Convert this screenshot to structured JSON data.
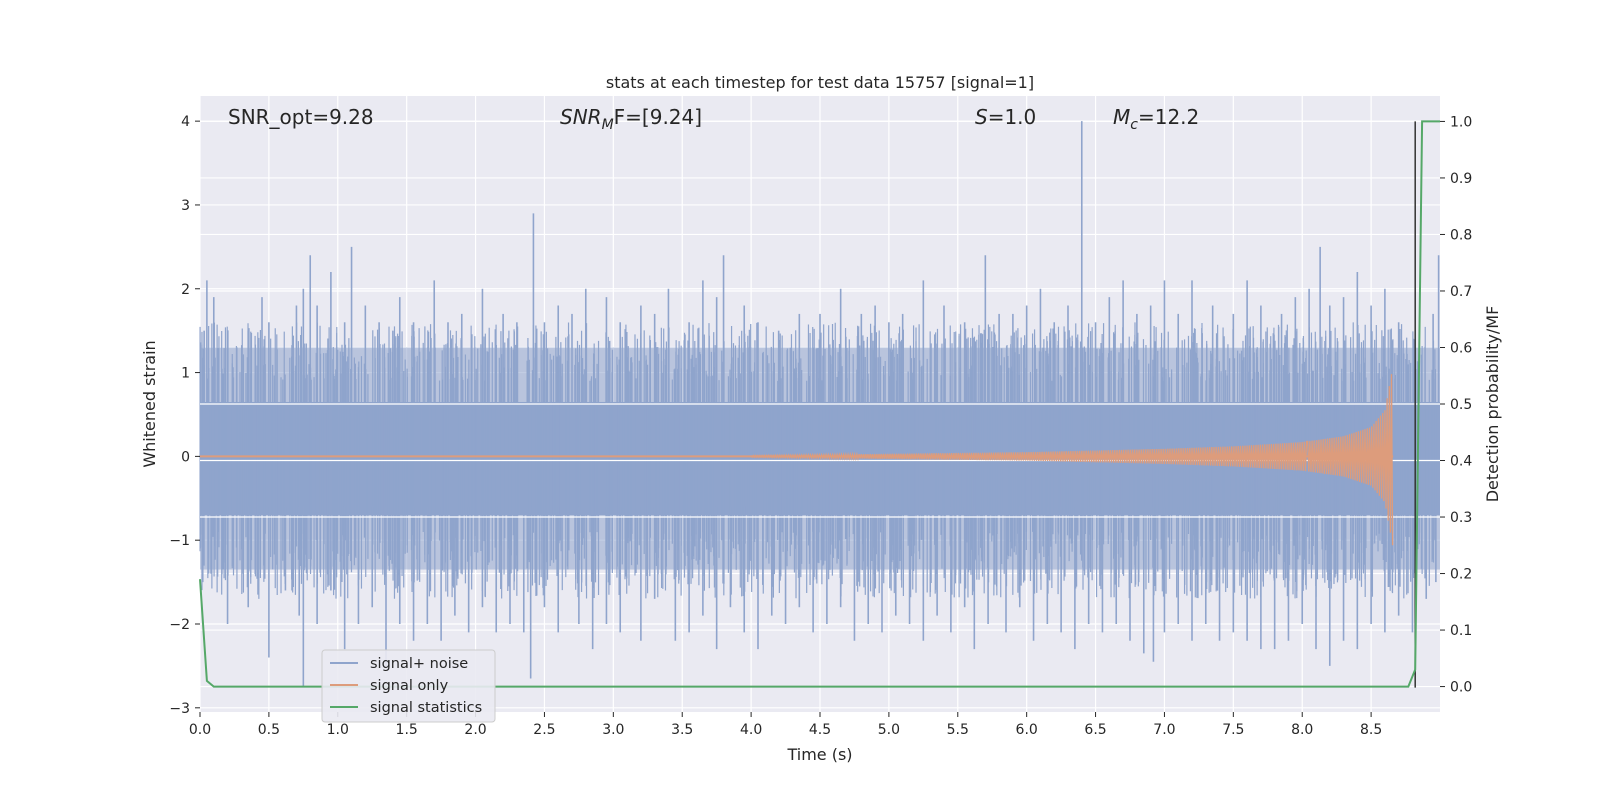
{
  "chart_data": {
    "type": "line",
    "title": "stats at each timestep for test data 15757 [signal=1]",
    "xlabel": "Time (s)",
    "ylabel_left": "Whitened strain",
    "ylabel_right": "Detection probability/MF",
    "xlim": [
      0.0,
      9.0
    ],
    "ylim_left": [
      -3.05,
      4.3
    ],
    "ylim_right": [
      -0.045,
      1.045
    ],
    "x_ticks": [
      "0.0",
      "0.5",
      "1.0",
      "1.5",
      "2.0",
      "2.5",
      "3.0",
      "3.5",
      "4.0",
      "4.5",
      "5.0",
      "5.5",
      "6.0",
      "6.5",
      "7.0",
      "7.5",
      "8.0",
      "8.5"
    ],
    "x_tick_values": [
      0.0,
      0.5,
      1.0,
      1.5,
      2.0,
      2.5,
      3.0,
      3.5,
      4.0,
      4.5,
      5.0,
      5.5,
      6.0,
      6.5,
      7.0,
      7.5,
      8.0,
      8.5
    ],
    "y_left_ticks": [
      "4",
      "3",
      "2",
      "1",
      "0",
      "−1",
      "−2",
      "−3"
    ],
    "y_left_tick_values": [
      4,
      3,
      2,
      1,
      0,
      -1,
      -2,
      -3
    ],
    "y_right_ticks": [
      "1.0",
      "0.9",
      "0.8",
      "0.7",
      "0.6",
      "0.5",
      "0.4",
      "0.3",
      "0.2",
      "0.1",
      "0.0"
    ],
    "y_right_tick_values": [
      1.0,
      0.9,
      0.8,
      0.7,
      0.6,
      0.5,
      0.4,
      0.3,
      0.2,
      0.1,
      0.0
    ],
    "grid": true,
    "legend_position": "lower-left",
    "annotations": {
      "snr_opt": "SNR_opt=9.28",
      "snr_mf_base": "SNR",
      "snr_mf_sub": "M",
      "snr_mf_rest": "F=[9.24]",
      "s_italic": "S",
      "s_value": "=1.0",
      "mc_base": "M",
      "mc_sub": "c",
      "mc_value": "=12.2"
    },
    "series": [
      {
        "name": "signal+ noise",
        "color": "#8fa4cc",
        "axis": "left",
        "band_x": [
          0.0,
          9.0
        ],
        "band_y": [
          -0.7,
          0.65
        ],
        "spikes_up": [
          [
            0.03,
            1.5
          ],
          [
            0.05,
            2.1
          ],
          [
            0.1,
            1.9
          ],
          [
            0.35,
            1.5
          ],
          [
            0.45,
            1.9
          ],
          [
            0.5,
            1.6
          ],
          [
            0.7,
            1.8
          ],
          [
            0.75,
            2.0
          ],
          [
            0.8,
            2.4
          ],
          [
            0.85,
            1.8
          ],
          [
            0.95,
            2.2
          ],
          [
            1.05,
            1.6
          ],
          [
            1.1,
            2.5
          ],
          [
            1.2,
            1.8
          ],
          [
            1.3,
            1.6
          ],
          [
            1.4,
            1.5
          ],
          [
            1.45,
            1.9
          ],
          [
            1.55,
            1.6
          ],
          [
            1.7,
            2.1
          ],
          [
            1.8,
            1.6
          ],
          [
            1.9,
            1.7
          ],
          [
            2.05,
            2.0
          ],
          [
            2.2,
            1.7
          ],
          [
            2.3,
            1.6
          ],
          [
            2.42,
            2.9
          ],
          [
            2.5,
            1.6
          ],
          [
            2.6,
            1.8
          ],
          [
            2.7,
            1.7
          ],
          [
            2.8,
            2.0
          ],
          [
            2.95,
            1.9
          ],
          [
            3.05,
            1.6
          ],
          [
            3.2,
            1.8
          ],
          [
            3.3,
            1.7
          ],
          [
            3.4,
            2.0
          ],
          [
            3.55,
            1.6
          ],
          [
            3.65,
            2.1
          ],
          [
            3.75,
            1.9
          ],
          [
            3.8,
            2.4
          ],
          [
            3.95,
            1.8
          ],
          [
            4.05,
            1.6
          ],
          [
            4.2,
            1.5
          ],
          [
            4.35,
            1.7
          ],
          [
            4.5,
            1.7
          ],
          [
            4.65,
            2.0
          ],
          [
            4.8,
            1.7
          ],
          [
            4.9,
            1.8
          ],
          [
            5.0,
            1.6
          ],
          [
            5.1,
            1.7
          ],
          [
            5.25,
            2.1
          ],
          [
            5.4,
            1.8
          ],
          [
            5.55,
            1.6
          ],
          [
            5.7,
            2.4
          ],
          [
            5.8,
            1.7
          ],
          [
            5.9,
            1.7
          ],
          [
            6.0,
            1.8
          ],
          [
            6.1,
            2.0
          ],
          [
            6.2,
            1.6
          ],
          [
            6.3,
            1.8
          ],
          [
            6.4,
            4.0
          ],
          [
            6.5,
            1.6
          ],
          [
            6.6,
            1.9
          ],
          [
            6.7,
            2.1
          ],
          [
            6.8,
            1.7
          ],
          [
            6.9,
            1.8
          ],
          [
            7.0,
            2.1
          ],
          [
            7.1,
            1.7
          ],
          [
            7.2,
            2.1
          ],
          [
            7.35,
            1.8
          ],
          [
            7.5,
            1.7
          ],
          [
            7.6,
            2.1
          ],
          [
            7.7,
            1.8
          ],
          [
            7.85,
            1.7
          ],
          [
            7.95,
            1.9
          ],
          [
            8.05,
            2.0
          ],
          [
            8.13,
            2.5
          ],
          [
            8.2,
            1.8
          ],
          [
            8.3,
            1.9
          ],
          [
            8.4,
            2.2
          ],
          [
            8.5,
            1.8
          ],
          [
            8.6,
            2.0
          ],
          [
            8.7,
            1.6
          ],
          [
            8.95,
            1.7
          ],
          [
            8.99,
            2.4
          ]
        ],
        "spikes_down": [
          [
            0.02,
            -1.5
          ],
          [
            0.08,
            -1.4
          ],
          [
            0.2,
            -2.0
          ],
          [
            0.35,
            -1.8
          ],
          [
            0.5,
            -2.4
          ],
          [
            0.62,
            -1.6
          ],
          [
            0.72,
            -1.9
          ],
          [
            0.75,
            -2.75
          ],
          [
            0.85,
            -2.0
          ],
          [
            0.95,
            -1.6
          ],
          [
            1.05,
            -2.3
          ],
          [
            1.15,
            -2.0
          ],
          [
            1.25,
            -1.8
          ],
          [
            1.35,
            -2.5
          ],
          [
            1.45,
            -2.0
          ],
          [
            1.55,
            -2.2
          ],
          [
            1.65,
            -2.0
          ],
          [
            1.75,
            -2.2
          ],
          [
            1.85,
            -1.9
          ],
          [
            1.95,
            -2.1
          ],
          [
            2.05,
            -1.8
          ],
          [
            2.15,
            -2.1
          ],
          [
            2.25,
            -2.0
          ],
          [
            2.35,
            -2.1
          ],
          [
            2.4,
            -2.65
          ],
          [
            2.5,
            -1.8
          ],
          [
            2.6,
            -2.1
          ],
          [
            2.75,
            -2.0
          ],
          [
            2.85,
            -2.3
          ],
          [
            2.95,
            -2.0
          ],
          [
            3.05,
            -2.1
          ],
          [
            3.2,
            -2.2
          ],
          [
            3.3,
            -1.7
          ],
          [
            3.45,
            -2.2
          ],
          [
            3.55,
            -2.1
          ],
          [
            3.65,
            -1.9
          ],
          [
            3.75,
            -2.3
          ],
          [
            3.85,
            -1.8
          ],
          [
            3.95,
            -2.1
          ],
          [
            4.05,
            -2.3
          ],
          [
            4.15,
            -1.9
          ],
          [
            4.25,
            -2.0
          ],
          [
            4.35,
            -1.8
          ],
          [
            4.45,
            -2.1
          ],
          [
            4.55,
            -2.0
          ],
          [
            4.65,
            -1.8
          ],
          [
            4.75,
            -2.2
          ],
          [
            4.85,
            -2.0
          ],
          [
            4.95,
            -2.1
          ],
          [
            5.05,
            -1.9
          ],
          [
            5.15,
            -2.0
          ],
          [
            5.25,
            -2.2
          ],
          [
            5.35,
            -1.9
          ],
          [
            5.45,
            -2.1
          ],
          [
            5.55,
            -1.8
          ],
          [
            5.62,
            -2.3
          ],
          [
            5.72,
            -2.0
          ],
          [
            5.85,
            -2.1
          ],
          [
            5.95,
            -1.8
          ],
          [
            6.05,
            -2.2
          ],
          [
            6.15,
            -2.0
          ],
          [
            6.25,
            -2.1
          ],
          [
            6.35,
            -2.3
          ],
          [
            6.45,
            -2.0
          ],
          [
            6.55,
            -2.1
          ],
          [
            6.65,
            -2.0
          ],
          [
            6.75,
            -2.2
          ],
          [
            6.85,
            -2.35
          ],
          [
            6.92,
            -2.45
          ],
          [
            7.0,
            -2.1
          ],
          [
            7.1,
            -2.0
          ],
          [
            7.2,
            -2.2
          ],
          [
            7.3,
            -2.0
          ],
          [
            7.4,
            -2.2
          ],
          [
            7.5,
            -2.1
          ],
          [
            7.6,
            -2.2
          ],
          [
            7.7,
            -2.3
          ],
          [
            7.8,
            -2.3
          ],
          [
            7.9,
            -2.2
          ],
          [
            8.0,
            -2.0
          ],
          [
            8.1,
            -2.3
          ],
          [
            8.2,
            -2.5
          ],
          [
            8.3,
            -2.2
          ],
          [
            8.4,
            -2.3
          ],
          [
            8.5,
            -2.0
          ],
          [
            8.6,
            -2.1
          ],
          [
            8.7,
            -1.9
          ],
          [
            8.8,
            -2.1
          ],
          [
            8.9,
            -1.7
          ],
          [
            8.97,
            -1.5
          ]
        ]
      },
      {
        "name": "signal only",
        "color": "#dd9c7c",
        "axis": "left",
        "envelope_x": [
          0.0,
          4.0,
          5.0,
          6.0,
          7.0,
          7.5,
          8.0,
          8.3,
          8.5,
          8.6,
          8.65,
          8.66
        ],
        "envelope_amp": [
          0.0,
          0.01,
          0.03,
          0.05,
          0.09,
          0.12,
          0.17,
          0.24,
          0.35,
          0.55,
          1.0,
          1.1
        ]
      },
      {
        "name": "signal statistics",
        "color": "#55a868",
        "axis": "right",
        "x": [
          0.0,
          0.05,
          0.1,
          8.7,
          8.77,
          8.82,
          8.87,
          9.0
        ],
        "y": [
          0.19,
          0.01,
          0.0,
          0.0,
          0.0,
          0.03,
          1.0,
          1.0
        ]
      }
    ],
    "vertical_line_x": 8.82
  }
}
